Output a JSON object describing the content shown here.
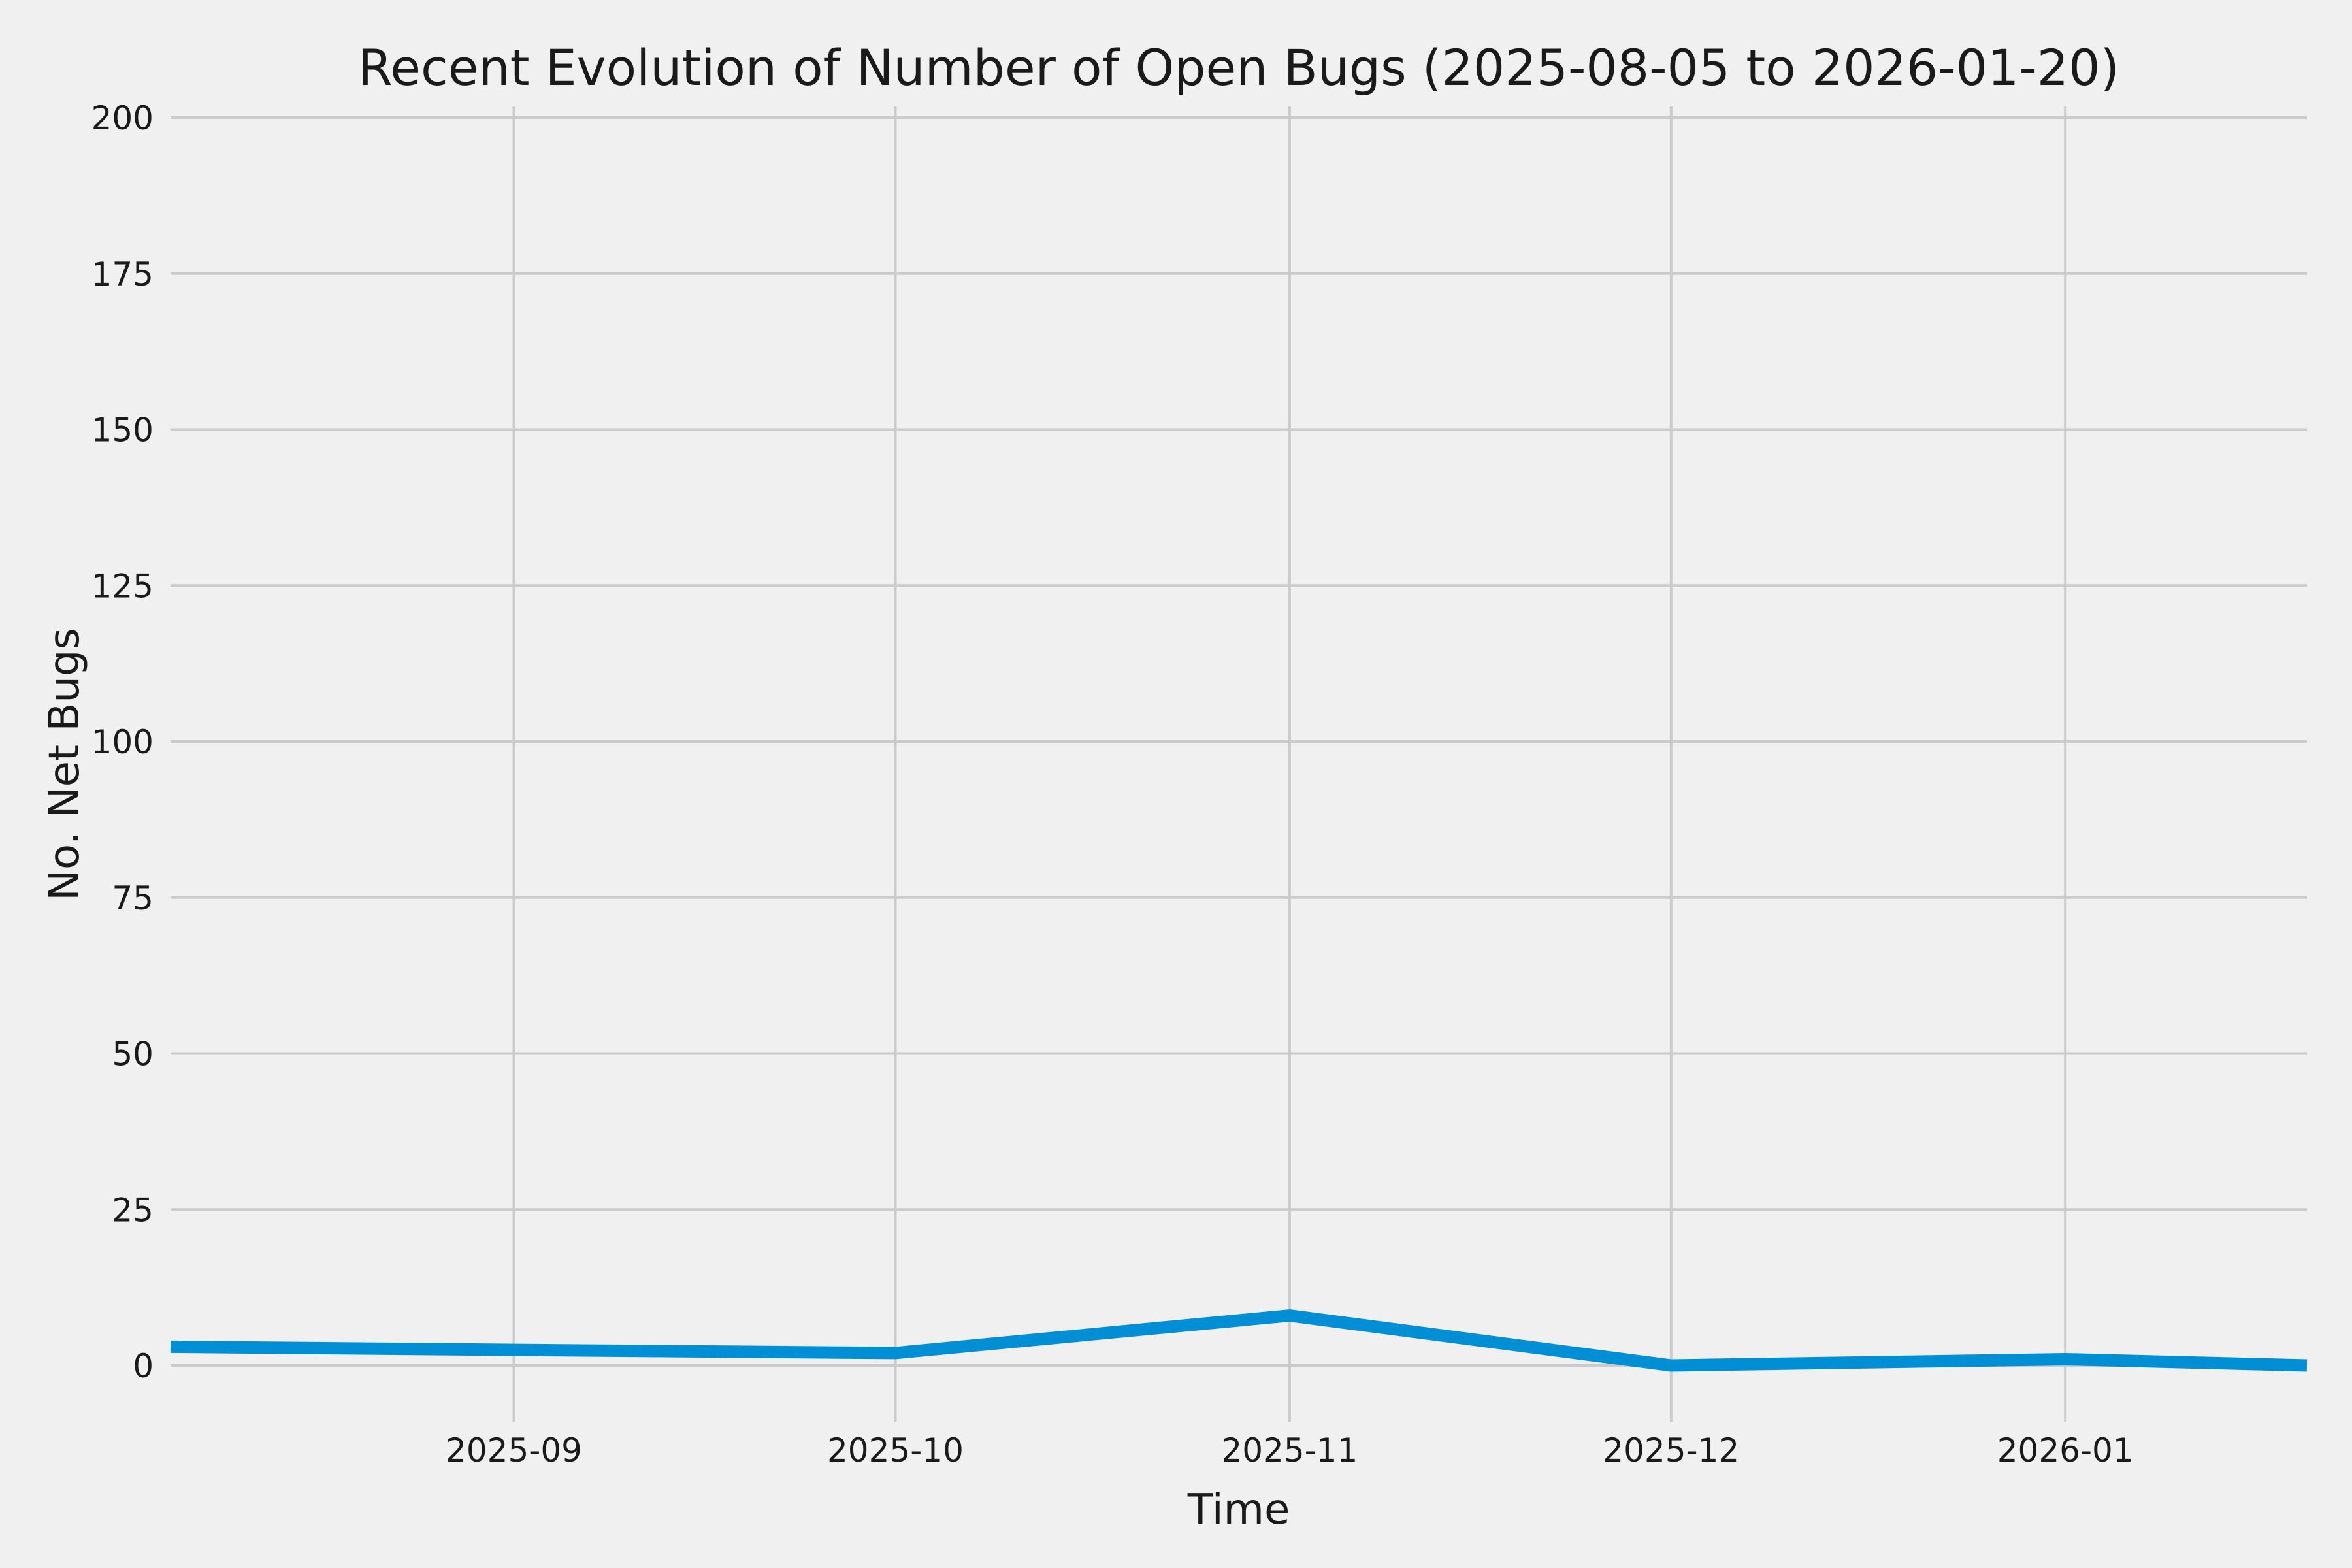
{
  "chart_data": {
    "type": "line",
    "title": "Recent Evolution of Number of Open Bugs (2025-08-05 to 2026-01-20)",
    "xlabel": "Time",
    "ylabel": "No. Net Bugs",
    "date_range": {
      "start": "2025-08-05",
      "end": "2026-01-20"
    },
    "ylim": [
      -9,
      202
    ],
    "y_ticks": [
      0,
      25,
      50,
      75,
      100,
      125,
      150,
      175,
      200
    ],
    "x_ticks": [
      {
        "date": "2025-09-01",
        "label": "2025-09"
      },
      {
        "date": "2025-10-01",
        "label": "2025-10"
      },
      {
        "date": "2025-11-01",
        "label": "2025-11"
      },
      {
        "date": "2025-12-01",
        "label": "2025-12"
      },
      {
        "date": "2026-01-01",
        "label": "2026-01"
      }
    ],
    "grid": true,
    "legend": false,
    "series": [
      {
        "name": "open-bugs",
        "color": "#008fd5",
        "points": [
          [
            "2025-08-05",
            3
          ],
          [
            "2025-09-01",
            2.5
          ],
          [
            "2025-10-01",
            2
          ],
          [
            "2025-11-01",
            8
          ],
          [
            "2025-12-01",
            0
          ],
          [
            "2026-01-01",
            1
          ],
          [
            "2026-01-20",
            0
          ]
        ]
      }
    ],
    "colors": {
      "background": "#f0f0f0",
      "grid": "#cbcbcb",
      "text": "#1a1a1a",
      "line": "#008fd5"
    }
  }
}
